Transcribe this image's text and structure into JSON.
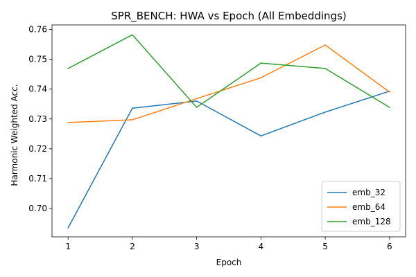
{
  "chart_data": {
    "type": "line",
    "title": "SPR_BENCH: HWA vs Epoch (All Embeddings)",
    "xlabel": "Epoch",
    "ylabel": "Harmonic Weighted Acc.",
    "x": [
      1,
      2,
      3,
      4,
      5,
      6
    ],
    "xlim": [
      0.75,
      6.25
    ],
    "ylim": [
      0.6905,
      0.7615
    ],
    "xticks": [
      1,
      2,
      3,
      4,
      5,
      6
    ],
    "yticks": [
      0.7,
      0.71,
      0.72,
      0.73,
      0.74,
      0.75,
      0.76
    ],
    "grid": false,
    "legend_position": "lower-right",
    "series": [
      {
        "name": "emb_32",
        "color": "#1f77b4",
        "values": [
          0.6935,
          0.7336,
          0.736,
          0.7243,
          0.7323,
          0.7393
        ]
      },
      {
        "name": "emb_64",
        "color": "#ff7f0e",
        "values": [
          0.7288,
          0.7297,
          0.7368,
          0.7438,
          0.7548,
          0.739
        ]
      },
      {
        "name": "emb_128",
        "color": "#2ca02c",
        "values": [
          0.7469,
          0.7582,
          0.7339,
          0.7487,
          0.7469,
          0.7339
        ]
      }
    ]
  }
}
